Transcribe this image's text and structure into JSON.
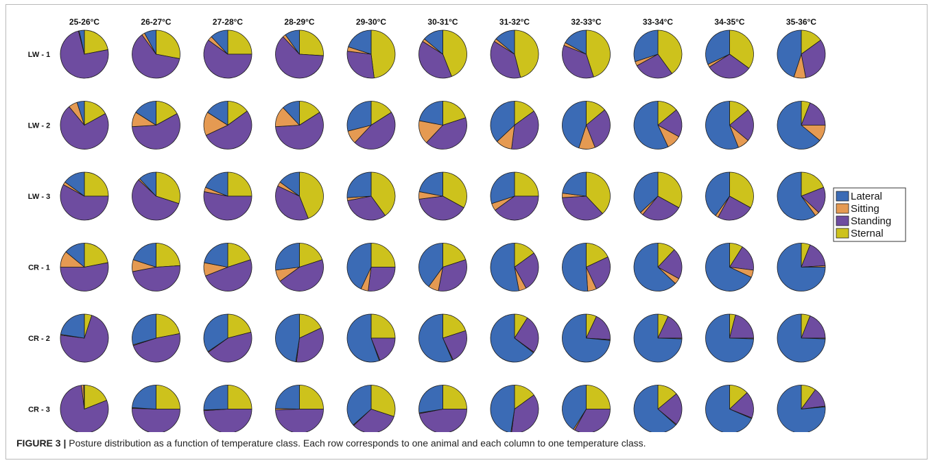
{
  "figure": {
    "caption_label": "FIGURE 3 |",
    "caption_text": " Posture distribution as a function of temperature class. Each row corresponds to one animal and each column to one temperature class."
  },
  "chart_data": {
    "type": "pie",
    "grid": true,
    "legend_position": "right",
    "columns": [
      "25-26°C",
      "26-27°C",
      "27-28°C",
      "28-29°C",
      "29-30°C",
      "30-31°C",
      "31-32°C",
      "32-33°C",
      "33-34°C",
      "34-35°C",
      "35-36°C"
    ],
    "rows": [
      "LW - 1",
      "LW - 2",
      "LW - 3",
      "CR - 1",
      "CR - 2",
      "CR - 3"
    ],
    "series_order": [
      "Sternal",
      "Standing",
      "Sitting",
      "Lateral"
    ],
    "legend": [
      {
        "name": "Lateral",
        "color": "#3b6bb5"
      },
      {
        "name": "Sitting",
        "color": "#e59a52"
      },
      {
        "name": "Standing",
        "color": "#6e4ca0"
      },
      {
        "name": "Sternal",
        "color": "#cdc21c"
      }
    ],
    "values": [
      [
        [
          0.22,
          0.74,
          0.005,
          0.035
        ],
        [
          0.28,
          0.62,
          0.02,
          0.08
        ],
        [
          0.25,
          0.6,
          0.03,
          0.12
        ],
        [
          0.26,
          0.62,
          0.02,
          0.1
        ],
        [
          0.48,
          0.29,
          0.03,
          0.2
        ],
        [
          0.44,
          0.4,
          0.02,
          0.14
        ],
        [
          0.46,
          0.38,
          0.02,
          0.14
        ],
        [
          0.45,
          0.36,
          0.02,
          0.17
        ],
        [
          0.4,
          0.27,
          0.03,
          0.3
        ],
        [
          0.35,
          0.31,
          0.02,
          0.32
        ],
        [
          0.15,
          0.32,
          0.08,
          0.45
        ]
      ],
      [
        [
          0.17,
          0.72,
          0.06,
          0.05
        ],
        [
          0.17,
          0.57,
          0.1,
          0.16
        ],
        [
          0.15,
          0.53,
          0.16,
          0.16
        ],
        [
          0.16,
          0.58,
          0.14,
          0.12
        ],
        [
          0.16,
          0.46,
          0.09,
          0.29
        ],
        [
          0.2,
          0.42,
          0.16,
          0.22
        ],
        [
          0.15,
          0.37,
          0.11,
          0.37
        ],
        [
          0.14,
          0.3,
          0.11,
          0.45
        ],
        [
          0.14,
          0.19,
          0.1,
          0.57
        ],
        [
          0.14,
          0.22,
          0.08,
          0.56
        ],
        [
          0.06,
          0.19,
          0.11,
          0.64
        ]
      ],
      [
        [
          0.25,
          0.58,
          0.02,
          0.15
        ],
        [
          0.3,
          0.57,
          0.01,
          0.12
        ],
        [
          0.25,
          0.53,
          0.03,
          0.19
        ],
        [
          0.44,
          0.38,
          0.03,
          0.15
        ],
        [
          0.4,
          0.32,
          0.02,
          0.26
        ],
        [
          0.33,
          0.4,
          0.05,
          0.22
        ],
        [
          0.25,
          0.4,
          0.05,
          0.3
        ],
        [
          0.38,
          0.36,
          0.03,
          0.23
        ],
        [
          0.33,
          0.28,
          0.02,
          0.37
        ],
        [
          0.33,
          0.25,
          0.02,
          0.4
        ],
        [
          0.19,
          0.18,
          0.03,
          0.6
        ]
      ],
      [
        [
          0.22,
          0.53,
          0.11,
          0.14
        ],
        [
          0.24,
          0.48,
          0.08,
          0.2
        ],
        [
          0.2,
          0.49,
          0.09,
          0.22
        ],
        [
          0.2,
          0.45,
          0.08,
          0.27
        ],
        [
          0.25,
          0.27,
          0.05,
          0.43
        ],
        [
          0.2,
          0.33,
          0.07,
          0.4
        ],
        [
          0.15,
          0.27,
          0.05,
          0.53
        ],
        [
          0.18,
          0.25,
          0.06,
          0.51
        ],
        [
          0.12,
          0.21,
          0.04,
          0.63
        ],
        [
          0.09,
          0.18,
          0.05,
          0.68
        ],
        [
          0.06,
          0.18,
          0.01,
          0.75
        ]
      ],
      [
        [
          0.05,
          0.72,
          0.005,
          0.225
        ],
        [
          0.22,
          0.48,
          0.005,
          0.295
        ],
        [
          0.21,
          0.44,
          0.005,
          0.345
        ],
        [
          0.18,
          0.34,
          0.005,
          0.475
        ],
        [
          0.25,
          0.19,
          0.005,
          0.555
        ],
        [
          0.2,
          0.23,
          0.005,
          0.565
        ],
        [
          0.09,
          0.26,
          0.005,
          0.645
        ],
        [
          0.07,
          0.19,
          0.005,
          0.735
        ],
        [
          0.07,
          0.18,
          0.005,
          0.745
        ],
        [
          0.04,
          0.21,
          0.005,
          0.745
        ],
        [
          0.06,
          0.19,
          0.005,
          0.745
        ]
      ],
      [
        [
          0.19,
          0.79,
          0.015,
          0.005
        ],
        [
          0.25,
          0.505,
          0.005,
          0.24
        ],
        [
          0.25,
          0.49,
          0.005,
          0.255
        ],
        [
          0.25,
          0.495,
          0.01,
          0.245
        ],
        [
          0.3,
          0.33,
          0.005,
          0.365
        ],
        [
          0.25,
          0.47,
          0.005,
          0.275
        ],
        [
          0.15,
          0.37,
          0.005,
          0.475
        ],
        [
          0.25,
          0.33,
          0.01,
          0.41
        ],
        [
          0.14,
          0.22,
          0.005,
          0.635
        ],
        [
          0.13,
          0.18,
          0.005,
          0.685
        ],
        [
          0.1,
          0.13,
          0.005,
          0.765
        ]
      ]
    ]
  }
}
